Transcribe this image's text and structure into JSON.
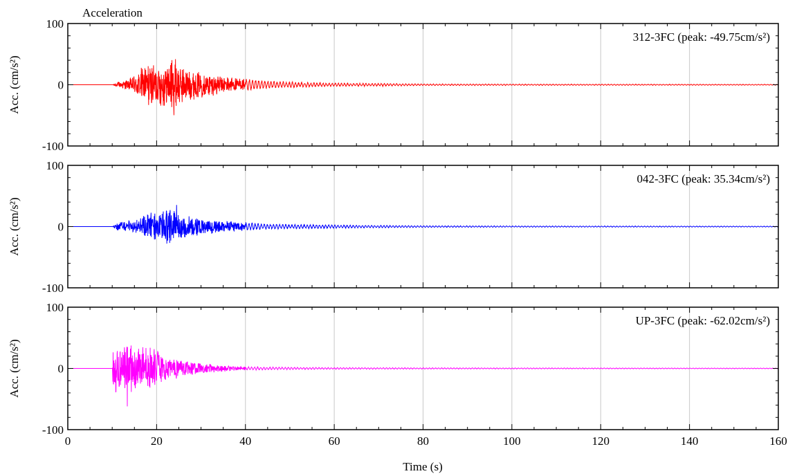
{
  "chart_data": {
    "type": "line",
    "title": "Acceleration",
    "xlabel": "Time (s)",
    "xlim": [
      0,
      160
    ],
    "x_ticks": [
      0,
      20,
      40,
      60,
      80,
      100,
      120,
      140,
      160
    ],
    "x_tick_labels": [
      "0",
      "20",
      "40",
      "60",
      "80",
      "100",
      "120",
      "140",
      "160"
    ],
    "grid": "vertical",
    "panels": [
      {
        "name": "312-3FC",
        "label": "312-3FC (peak: -49.75cm/s²)",
        "peak": -49.75,
        "peak_time": 23.9,
        "color": "#ff0000",
        "ylabel": "Acc. (cm/s²)",
        "ylim": [
          -100,
          100
        ],
        "y_ticks": [
          100,
          0,
          -100
        ],
        "y_tick_labels": [
          "100",
          "0",
          "-100"
        ],
        "envelope": {
          "x": [
            0,
            10,
            11,
            14,
            16,
            18,
            20,
            22,
            24,
            26,
            28,
            30,
            35,
            40,
            45,
            50,
            60,
            70,
            80,
            100,
            130,
            160
          ],
          "y": [
            0,
            0,
            4,
            10,
            25,
            38,
            35,
            40,
            45,
            30,
            25,
            22,
            15,
            10,
            7,
            5,
            3,
            2.5,
            1.5,
            1.2,
            1.0,
            0.8
          ]
        }
      },
      {
        "name": "042-3FC",
        "label": "042-3FC (peak: 35.34cm/s²)",
        "peak": 35.34,
        "peak_time": 24.5,
        "color": "#0000ff",
        "ylabel": "Acc. (cm/s²)",
        "ylim": [
          -100,
          100
        ],
        "y_ticks": [
          100,
          0,
          -100
        ],
        "y_tick_labels": [
          "100",
          "0",
          "-100"
        ],
        "envelope": {
          "x": [
            0,
            10,
            11,
            13,
            15,
            17,
            19,
            21,
            23,
            25,
            27,
            30,
            35,
            40,
            45,
            50,
            60,
            70,
            80,
            100,
            130,
            160
          ],
          "y": [
            0,
            0,
            6,
            10,
            9,
            18,
            25,
            26,
            30,
            22,
            18,
            14,
            10,
            7,
            5,
            4,
            3,
            2.2,
            1.5,
            1.2,
            1.0,
            0.8
          ]
        }
      },
      {
        "name": "UP-3FC",
        "label": "UP-3FC (peak: -62.02cm/s²)",
        "peak": -62.02,
        "peak_time": 13.4,
        "color": "#ff00ff",
        "ylabel": "Acc. (cm/s²)",
        "ylim": [
          -100,
          100
        ],
        "y_ticks": [
          100,
          0,
          -100
        ],
        "y_tick_labels": [
          "100",
          "0",
          "-100"
        ],
        "envelope": {
          "x": [
            0,
            10,
            10.3,
            12,
            14,
            16,
            18,
            20,
            22,
            24,
            26,
            28,
            30,
            35,
            40,
            50,
            60,
            80,
            100,
            130,
            160
          ],
          "y": [
            0,
            0,
            45,
            38,
            40,
            35,
            38,
            30,
            22,
            18,
            14,
            11,
            9,
            5,
            3,
            2,
            1.5,
            1.2,
            1.0,
            0.8,
            0.6
          ]
        }
      }
    ]
  }
}
